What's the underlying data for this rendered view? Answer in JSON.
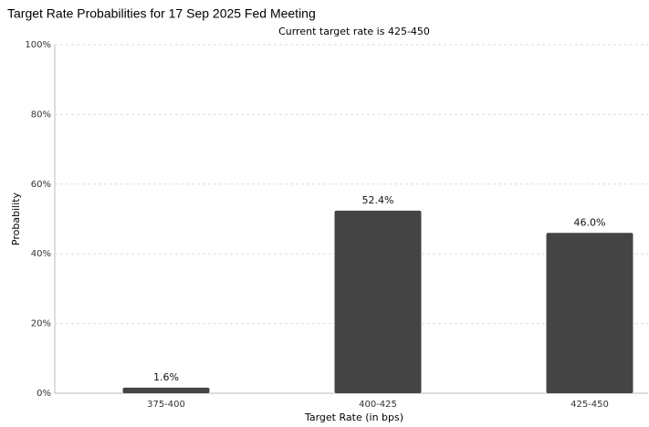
{
  "chart_data": {
    "type": "bar",
    "title": "Target Rate Probabilities for 17 Sep 2025 Fed Meeting",
    "subtitle": "Current target rate is 425-450",
    "x_label": "Target Rate (in bps)",
    "y_label": "Probability",
    "categories": [
      "375-400",
      "400-425",
      "425-450"
    ],
    "values": [
      1.6,
      52.4,
      46.0
    ],
    "value_labels": [
      "1.6%",
      "52.4%",
      "46.0%"
    ],
    "color": "#444444",
    "ylim": [
      0,
      100
    ],
    "yticks": [
      {
        "value": 0,
        "label": "0%"
      },
      {
        "value": 20,
        "label": "20%"
      },
      {
        "value": 40,
        "label": "40%"
      },
      {
        "value": 60,
        "label": "60%"
      },
      {
        "value": 80,
        "label": "80%"
      },
      {
        "value": 100,
        "label": "100%"
      }
    ],
    "grid": true
  }
}
